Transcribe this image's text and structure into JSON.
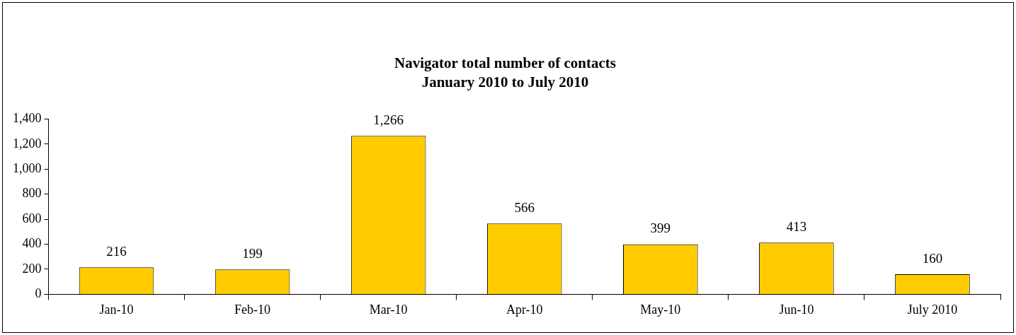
{
  "chart_data": {
    "type": "bar",
    "title": "Navigator total number of contacts",
    "subtitle": "January 2010 to July 2010",
    "categories": [
      "Jan-10",
      "Feb-10",
      "Mar-10",
      "Apr-10",
      "May-10",
      "Jun-10",
      "July 2010"
    ],
    "values": [
      216,
      199,
      1266,
      566,
      399,
      413,
      160
    ],
    "color": "#ffcc00",
    "ylim": [
      0,
      1400
    ],
    "yticks": [
      {
        "value": 0,
        "label": "0"
      },
      {
        "value": 200,
        "label": "200"
      },
      {
        "value": 400,
        "label": "400"
      },
      {
        "value": 600,
        "label": "600"
      },
      {
        "value": 800,
        "label": "800"
      },
      {
        "value": 1000,
        "label": "1,000"
      },
      {
        "value": 1200,
        "label": "1,200"
      },
      {
        "value": 1400,
        "label": "1,400"
      }
    ],
    "data_labels": true,
    "value_labels": [
      "216",
      "199",
      "1,266",
      "566",
      "399",
      "413",
      "160"
    ],
    "grid": false,
    "legend": false
  }
}
